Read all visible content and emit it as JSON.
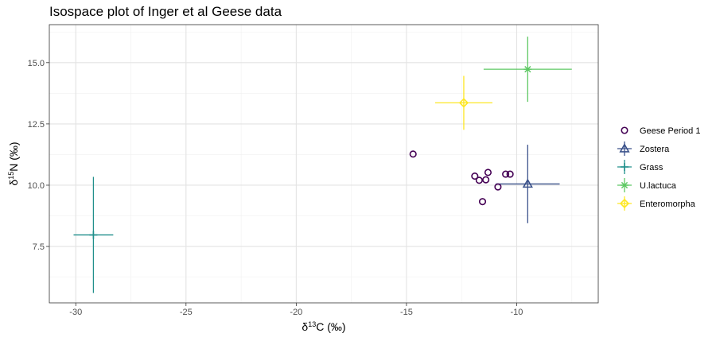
{
  "chart_data": {
    "type": "scatter",
    "title": "Isospace plot of Inger et al Geese data",
    "xlabel": {
      "prefix": "δ",
      "sup": "13",
      "suffix": "C (‰)"
    },
    "ylabel": {
      "prefix": "δ",
      "sup": "15",
      "suffix": "N (‰)"
    },
    "xlim": [
      -31.2,
      -6.3
    ],
    "ylim": [
      5.2,
      16.55
    ],
    "x_ticks": [
      -30,
      -25,
      -20,
      -15,
      -10
    ],
    "x_tick_labels": [
      "-30",
      "-25",
      "-20",
      "-15",
      "-10"
    ],
    "y_ticks": [
      7.5,
      10.0,
      12.5,
      15.0
    ],
    "y_tick_labels": [
      "7.5",
      "10.0",
      "12.5",
      "15.0"
    ],
    "grid": true,
    "legend_position": "right",
    "mixtures": {
      "name": "Geese Period 1",
      "color": "#440154",
      "marker": "circle-open",
      "points": [
        {
          "x": -14.7,
          "y": 11.27
        },
        {
          "x": -11.9,
          "y": 10.37
        },
        {
          "x": -11.7,
          "y": 10.2
        },
        {
          "x": -11.4,
          "y": 10.22
        },
        {
          "x": -11.3,
          "y": 10.52
        },
        {
          "x": -11.55,
          "y": 9.33
        },
        {
          "x": -10.85,
          "y": 9.93
        },
        {
          "x": -10.5,
          "y": 10.45
        },
        {
          "x": -10.3,
          "y": 10.45
        }
      ]
    },
    "sources": [
      {
        "name": "Zostera",
        "color": "#3B528B",
        "marker": "triangle-open",
        "x": -9.5,
        "y": 10.05,
        "x_err": 1.45,
        "y_err": 1.6
      },
      {
        "name": "Grass",
        "color": "#21908C",
        "marker": "plus",
        "x": -29.2,
        "y": 7.97,
        "x_err": 0.9,
        "y_err": 2.37
      },
      {
        "name": "U.lactuca",
        "color": "#5DC863",
        "marker": "asterisk",
        "x": -9.5,
        "y": 14.73,
        "x_err": 2.0,
        "y_err": 1.33
      },
      {
        "name": "Enteromorpha",
        "color": "#FDE725",
        "marker": "diamond-plus",
        "x": -12.4,
        "y": 13.36,
        "x_err": 1.3,
        "y_err": 1.1
      }
    ]
  }
}
